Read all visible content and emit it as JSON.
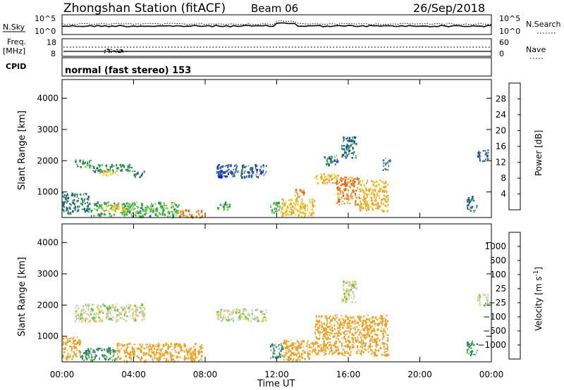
{
  "header": {
    "station": "Zhongshan Station (fitACF)",
    "beam": "Beam 06",
    "date": "26/Sep/2018"
  },
  "noise_panel": {
    "left_label": "N.Sky",
    "right_label": "N.Search",
    "left_ticks": [
      "10^5",
      "10^0"
    ],
    "right_ticks": [
      "10^5",
      "10^0"
    ]
  },
  "freq_panel": {
    "left_label_line1": "Freq.",
    "left_label_line2": "[MHz]",
    "right_label": "Nave",
    "left_ticks": [
      "18",
      "8"
    ],
    "right_ticks": [
      "60",
      "0"
    ]
  },
  "cpid_panel": {
    "label": "CPID",
    "text": "normal (fast stereo) 153"
  },
  "x_axis": {
    "label": "Time UT",
    "ticks": [
      "00:00",
      "04:00",
      "08:00",
      "12:00",
      "16:00",
      "20:00",
      "00:00"
    ]
  },
  "colors": {
    "power": [
      "#0018e8",
      "#1e4aa8",
      "#2e8a5a",
      "#5ec83a",
      "#e8d21c",
      "#f0a020",
      "#e8601a",
      "#e01010"
    ],
    "velocity": [
      "#e01010",
      "#e8601a",
      "#f0a020",
      "#f5c84a",
      "#c8c8c0",
      "#5ec83a",
      "#2e8a5a",
      "#1e4aa8",
      "#0018e8"
    ]
  },
  "chart_data": [
    {
      "type": "heatmap",
      "title": "Power",
      "x_range": [
        "00:00",
        "24:00"
      ],
      "ylabel": "Slant Range [km]",
      "yticks": [
        1000,
        2000,
        3000,
        4000
      ],
      "ylim": [
        180,
        4600
      ],
      "colorbar": {
        "label": "Power [dB]",
        "ticks": [
          4,
          8,
          12,
          16,
          20,
          24,
          28
        ],
        "range": [
          0,
          32
        ]
      },
      "regions": [
        {
          "t": [
            0.7,
            1.7
          ],
          "r": [
            1800,
            2050
          ],
          "v": 12
        },
        {
          "t": [
            1.7,
            3.9
          ],
          "r": [
            1650,
            1900
          ],
          "v": 10
        },
        {
          "t": [
            3.9,
            4.6
          ],
          "r": [
            1500,
            1700
          ],
          "v": 9
        },
        {
          "t": [
            2.0,
            3.2
          ],
          "r": [
            1550,
            1700
          ],
          "v": 18
        },
        {
          "t": [
            0.0,
            1.5
          ],
          "r": [
            350,
            1000
          ],
          "v": 9
        },
        {
          "t": [
            1.5,
            4.0
          ],
          "r": [
            250,
            700
          ],
          "v": 12
        },
        {
          "t": [
            4.0,
            6.5
          ],
          "r": [
            220,
            700
          ],
          "v": 13
        },
        {
          "t": [
            6.5,
            7.8
          ],
          "r": [
            200,
            450
          ],
          "v": 24
        },
        {
          "t": [
            2.2,
            3.5
          ],
          "r": [
            400,
            600
          ],
          "v": 19
        },
        {
          "t": [
            8.6,
            11.4
          ],
          "r": [
            1500,
            1900
          ],
          "v": 6
        },
        {
          "t": [
            8.6,
            9.4
          ],
          "r": [
            450,
            700
          ],
          "v": 12
        },
        {
          "t": [
            11.6,
            12.2
          ],
          "r": [
            350,
            700
          ],
          "v": 12
        },
        {
          "t": [
            12.2,
            14.1
          ],
          "r": [
            250,
            800
          ],
          "v": 20
        },
        {
          "t": [
            13.0,
            13.5
          ],
          "r": [
            700,
            1100
          ],
          "v": 23
        },
        {
          "t": [
            14.1,
            15.4
          ],
          "r": [
            1300,
            1600
          ],
          "v": 20
        },
        {
          "t": [
            14.6,
            15.4
          ],
          "r": [
            1900,
            2200
          ],
          "v": 10
        },
        {
          "t": [
            15.3,
            16.6
          ],
          "r": [
            600,
            1500
          ],
          "v": 24
        },
        {
          "t": [
            16.6,
            18.2
          ],
          "r": [
            400,
            1400
          ],
          "v": 21
        },
        {
          "t": [
            15.6,
            16.4
          ],
          "r": [
            2100,
            2800
          ],
          "v": 9
        },
        {
          "t": [
            17.9,
            18.3
          ],
          "r": [
            1700,
            2100
          ],
          "v": 7
        },
        {
          "t": [
            22.6,
            23.2
          ],
          "r": [
            400,
            900
          ],
          "v": 9
        },
        {
          "t": [
            23.2,
            23.8
          ],
          "r": [
            2000,
            2400
          ],
          "v": 7
        }
      ]
    },
    {
      "type": "heatmap",
      "title": "Velocity",
      "x_range": [
        "00:00",
        "24:00"
      ],
      "ylabel": "Slant Range [km]",
      "yticks": [
        1000,
        2000,
        3000,
        4000
      ],
      "ylim": [
        180,
        4600
      ],
      "colorbar": {
        "label": "Velocity [m s^-1]",
        "ticks": [
          "1000",
          "500",
          "100",
          "25",
          "−25",
          "−100",
          "−500",
          "−1000"
        ]
      },
      "regions": [
        {
          "t": [
            0.7,
            4.6
          ],
          "r": [
            1500,
            2050
          ],
          "v": 0
        },
        {
          "t": [
            0.0,
            1.0
          ],
          "r": [
            300,
            1000
          ],
          "v": -200
        },
        {
          "t": [
            1.0,
            3.0
          ],
          "r": [
            250,
            650
          ],
          "v": 150
        },
        {
          "t": [
            3.0,
            7.8
          ],
          "r": [
            220,
            800
          ],
          "v": -250
        },
        {
          "t": [
            8.6,
            11.4
          ],
          "r": [
            1500,
            1900
          ],
          "v": 0
        },
        {
          "t": [
            11.6,
            12.3
          ],
          "r": [
            300,
            800
          ],
          "v": 150
        },
        {
          "t": [
            12.3,
            14.1
          ],
          "r": [
            250,
            900
          ],
          "v": -250
        },
        {
          "t": [
            14.1,
            18.2
          ],
          "r": [
            400,
            1700
          ],
          "v": -250
        },
        {
          "t": [
            15.6,
            16.4
          ],
          "r": [
            2100,
            2800
          ],
          "v": 0
        },
        {
          "t": [
            22.6,
            23.2
          ],
          "r": [
            400,
            900
          ],
          "v": 150
        },
        {
          "t": [
            23.2,
            23.8
          ],
          "r": [
            2000,
            2400
          ],
          "v": 0
        }
      ]
    }
  ]
}
